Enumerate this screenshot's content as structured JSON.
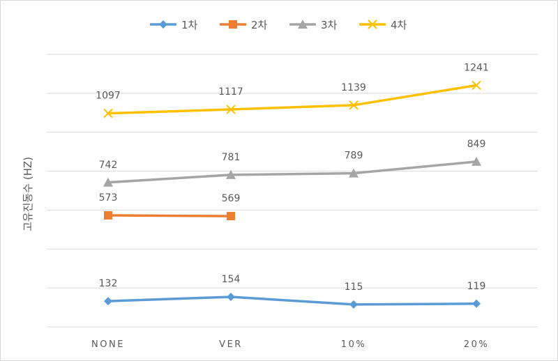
{
  "chart_data": {
    "type": "line",
    "title": "",
    "xlabel": "",
    "ylabel": "고유진동수 (HZ)",
    "categories": [
      "NONE",
      "VER",
      "10%",
      "20%"
    ],
    "ylim": [
      0,
      1400
    ],
    "grid": true,
    "legend_position": "top",
    "series": [
      {
        "name": "1차",
        "values": [
          132,
          154,
          115,
          119
        ],
        "color": "#5b9bd5",
        "marker": "diamond"
      },
      {
        "name": "2차",
        "values": [
          573,
          569,
          null,
          null
        ],
        "color": "#ed7d31",
        "marker": "square"
      },
      {
        "name": "3차",
        "values": [
          742,
          781,
          789,
          849
        ],
        "color": "#a5a5a5",
        "marker": "triangle"
      },
      {
        "name": "4차",
        "values": [
          1097,
          1117,
          1139,
          1241
        ],
        "color": "#ffc000",
        "marker": "x"
      }
    ]
  }
}
